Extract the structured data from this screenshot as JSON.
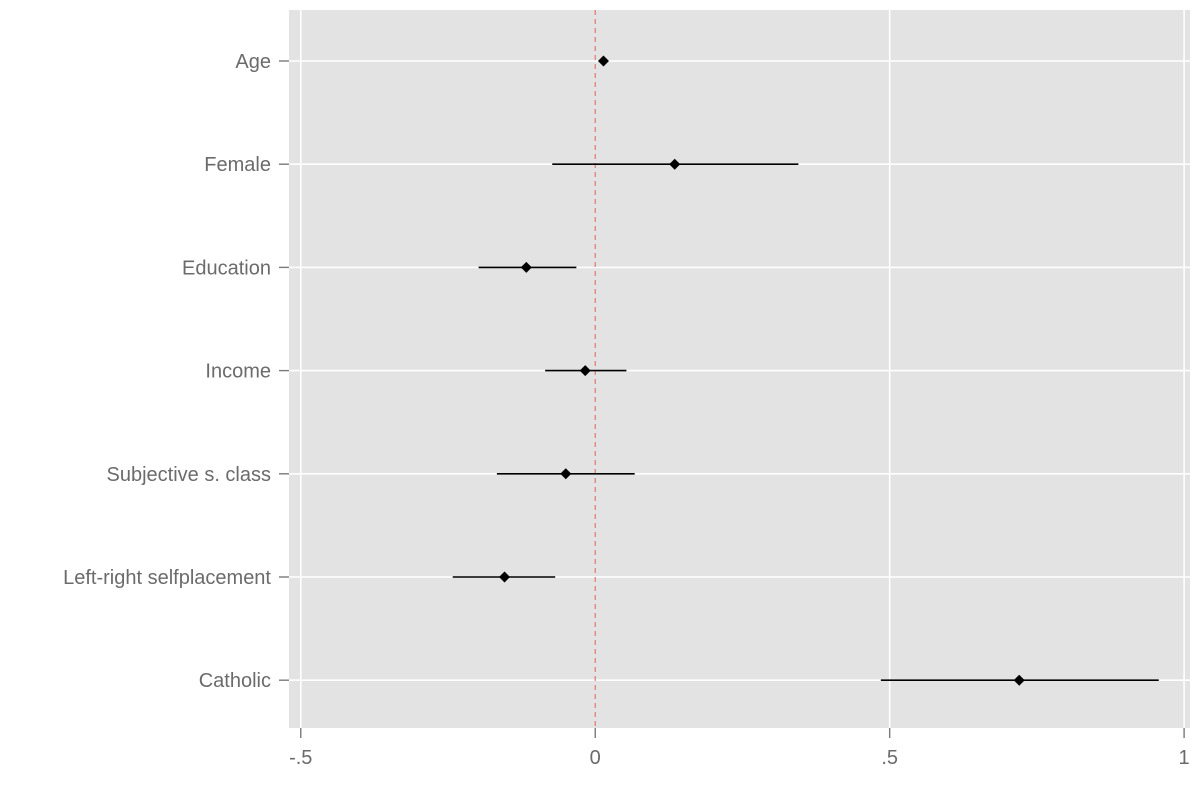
{
  "chart_data": {
    "type": "scatter",
    "subtype": "coefficient-plot",
    "title": "",
    "xlabel": "",
    "ylabel": "",
    "xlim": [
      -0.52,
      1.01
    ],
    "xticks": [
      {
        "value": -0.5,
        "label": "-.5"
      },
      {
        "value": 0,
        "label": "0"
      },
      {
        "value": 0.5,
        "label": ".5"
      },
      {
        "value": 1,
        "label": "1"
      }
    ],
    "reference_line": {
      "x": 0,
      "color": "#e07a70",
      "style": "dashed"
    },
    "categories": [
      "Age",
      "Female",
      "Education",
      "Income",
      "Subjective s. class",
      "Left-right selfplacement",
      "Catholic"
    ],
    "estimates": [
      0.014,
      0.135,
      -0.117,
      -0.017,
      -0.05,
      -0.154,
      0.72
    ],
    "ci_low": [
      0.014,
      -0.073,
      -0.198,
      -0.085,
      -0.167,
      -0.242,
      0.485
    ],
    "ci_high": [
      0.014,
      0.345,
      -0.032,
      0.053,
      0.067,
      -0.068,
      0.957
    ],
    "background": "#e3e3e3",
    "grid": true,
    "legend": "none"
  }
}
